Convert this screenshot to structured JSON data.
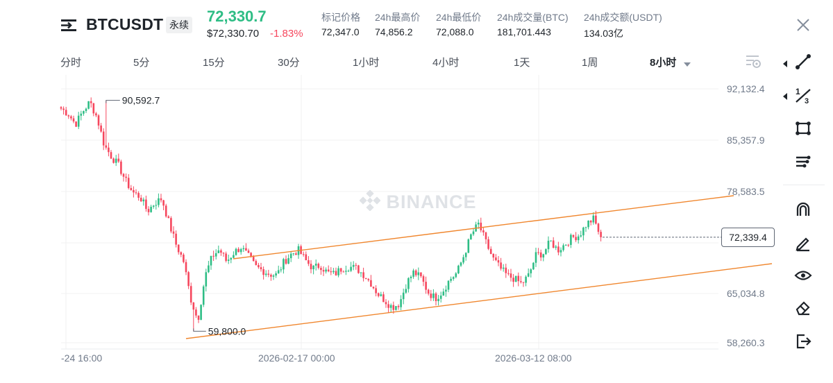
{
  "header": {
    "symbol": "BTCUSDT",
    "contract_type": "永续",
    "last_price": "72,330.7",
    "last_price_usd": "$72,330.70",
    "change_pct": "-1.83%",
    "stats": [
      {
        "label": "标记价格",
        "value": "72,347.0"
      },
      {
        "label": "24h最高价",
        "value": "74,856.2"
      },
      {
        "label": "24h最低价",
        "value": "72,088.0"
      },
      {
        "label": "24h成交量(BTC)",
        "value": "181,701.443"
      },
      {
        "label": "24h成交额(USDT)",
        "value": "134.03亿"
      }
    ],
    "colors": {
      "up": "#2ebd85",
      "down": "#f6465d"
    }
  },
  "timeframes": {
    "tabs": [
      "分时",
      "5分",
      "15分",
      "30分",
      "1小时",
      "4小时",
      "1天",
      "1周",
      "8小时"
    ],
    "selected": "8小时"
  },
  "chart": {
    "watermark": "BINANCE",
    "y_ticks": [
      "92,132.4",
      "85,357.9",
      "78,583.5",
      "65,034.8",
      "58,260.3"
    ],
    "x_ticks": [
      "-24 16:00",
      "2026-02-17 00:00",
      "2026-03-12 08:00"
    ],
    "high_label": "90,592.7",
    "low_label": "59,800.0",
    "current_price": "72,339.4",
    "channel_color": "#f0862d"
  },
  "chart_data": {
    "type": "candlestick",
    "interval": "8小时",
    "ylim": [
      56000,
      94000
    ],
    "price_high": 90592.7,
    "price_low": 59800.0,
    "current": 72339.4,
    "close_path": [
      89500,
      88800,
      87400,
      89100,
      90400,
      88300,
      84600,
      83100,
      81900,
      79800,
      78300,
      77700,
      75800,
      76900,
      77500,
      74200,
      71300,
      69200,
      64200,
      61200,
      67100,
      69800,
      70700,
      69100,
      70300,
      71000,
      69800,
      68400,
      67900,
      67400,
      67300,
      69100,
      70100,
      70600,
      69200,
      68200,
      68600,
      67600,
      67400,
      68200,
      68400,
      68200,
      67400,
      66300,
      64800,
      63900,
      63000,
      63500,
      66200,
      67700,
      66900,
      65000,
      64200,
      65100,
      66700,
      67600,
      70000,
      72700,
      74100,
      71700,
      69500,
      68200,
      67200,
      66800,
      66100,
      67300,
      70000,
      70200,
      71800,
      70600,
      71400,
      72300,
      72600,
      74100,
      74800,
      72300
    ]
  }
}
